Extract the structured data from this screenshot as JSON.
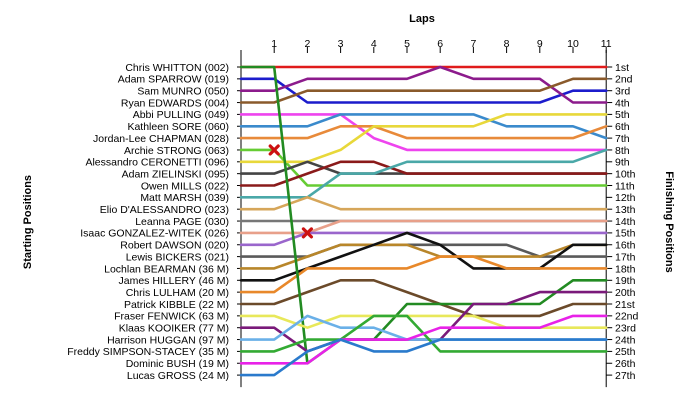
{
  "chart_data": {
    "type": "line",
    "title": "",
    "top_axis_title": "Laps",
    "left_axis_title": "Starting Positions",
    "right_axis_title": "Finishing Positions",
    "laps": [
      1,
      2,
      3,
      4,
      5,
      6,
      7,
      8,
      9,
      10,
      11
    ],
    "starting_labels": [
      "Chris WHITTON (002)",
      "Adam SPARROW (019)",
      "Sam MUNRO (050)",
      "Ryan EDWARDS (004)",
      "Abbi PULLING (049)",
      "Kathleen SORE (060)",
      "Jordan-Lee CHAPMAN (028)",
      "Archie STRONG (063)",
      "Alessandro CERONETTI (096)",
      "Adam ZIELINSKI (095)",
      "Owen MILLS (022)",
      "Matt MARSH (039)",
      "Elio D'ALESSANDRO (023)",
      "Leanna PAGE (030)",
      "Isaac GONZALEZ-WITEK (026)",
      "Robert DAWSON (020)",
      "Lewis BICKERS (021)",
      "Lochlan BEARMAN (36 M)",
      "James HILLERY (46 M)",
      "Chris LULHAM (20 M)",
      "Patrick KIBBLE (22 M)",
      "Fraser FENWICK (63 M)",
      "Klaas KOOIKER (77 M)",
      "Harrison HUGGAN (97 M)",
      "Freddy SIMPSON-STACEY (35 M)",
      "Dominic BUSH (19 M)",
      "Lucas GROSS (24 M)"
    ],
    "finishing_labels": [
      "1st",
      "2nd",
      "3rd",
      "4th",
      "5th",
      "6th",
      "7th",
      "8th",
      "9th",
      "10th",
      "11th",
      "12th",
      "13th",
      "14th",
      "15th",
      "16th",
      "17th",
      "18th",
      "19th",
      "20th",
      "21st",
      "22nd",
      "23rd",
      "24th",
      "25th",
      "26th",
      "27th"
    ],
    "y_range": [
      1,
      27
    ],
    "x_range": [
      0,
      11
    ],
    "grid": true,
    "retirements": [
      {
        "lap": 1,
        "position": 8
      },
      {
        "lap": 2,
        "position": 15
      }
    ],
    "series": [
      {
        "color": "#e01b1b",
        "positions": [
          1,
          1,
          1,
          1,
          1,
          1,
          1,
          1,
          1,
          1,
          1,
          1
        ]
      },
      {
        "color": "#1c1ccc",
        "positions": [
          2,
          2,
          4,
          4,
          4,
          4,
          4,
          4,
          4,
          4,
          3,
          3
        ]
      },
      {
        "color": "#8c1b8c",
        "positions": [
          3,
          3,
          2,
          2,
          2,
          2,
          1,
          2,
          2,
          2,
          4,
          4
        ]
      },
      {
        "color": "#8a5a2b",
        "positions": [
          4,
          4,
          3,
          3,
          3,
          3,
          3,
          3,
          3,
          3,
          2,
          2
        ]
      },
      {
        "color": "#ee44ee",
        "positions": [
          5,
          5,
          5,
          5,
          7,
          8,
          8,
          8,
          8,
          8,
          8,
          8
        ]
      },
      {
        "color": "#3a8acc",
        "positions": [
          6,
          6,
          6,
          5,
          5,
          5,
          5,
          5,
          6,
          6,
          6,
          7
        ]
      },
      {
        "color": "#e88a3a",
        "positions": [
          7,
          7,
          7,
          6,
          6,
          7,
          7,
          7,
          7,
          7,
          7,
          6
        ]
      },
      {
        "color": "#66cc33",
        "positions": [
          8,
          8,
          11,
          11,
          11,
          11,
          11,
          11,
          11,
          11,
          11,
          11
        ]
      },
      {
        "color": "#e8d83a",
        "positions": [
          9,
          9,
          9,
          8,
          6,
          6,
          6,
          6,
          5,
          5,
          5,
          5
        ]
      },
      {
        "color": "#444444",
        "positions": [
          10,
          10,
          9,
          10,
          10,
          10,
          10,
          10,
          10,
          10,
          10,
          10
        ]
      },
      {
        "color": "#8a1a1a",
        "positions": [
          11,
          11,
          10,
          9,
          9,
          10,
          10,
          10,
          10,
          10,
          10,
          10
        ]
      },
      {
        "color": "#4aa8a8",
        "positions": [
          12,
          12,
          12,
          10,
          10,
          9,
          9,
          9,
          9,
          9,
          9,
          8
        ]
      },
      {
        "color": "#d6a65a",
        "positions": [
          13,
          13,
          12,
          13,
          13,
          13,
          13,
          13,
          13,
          13,
          13,
          13
        ]
      },
      {
        "color": "#777777",
        "positions": [
          14,
          14,
          14,
          14,
          14,
          14,
          14,
          14,
          14,
          14,
          14,
          14
        ]
      },
      {
        "color": "#e8a08a",
        "positions": [
          15,
          15,
          15,
          14,
          14,
          14,
          14,
          14,
          14,
          14,
          14,
          14
        ]
      },
      {
        "color": "#9a66cc",
        "positions": [
          16,
          16,
          15,
          15,
          15,
          15,
          15,
          15,
          15,
          15,
          15,
          15
        ]
      },
      {
        "color": "#5a5a5a",
        "positions": [
          17,
          17,
          17,
          16,
          16,
          16,
          16,
          16,
          16,
          17,
          17,
          17
        ]
      },
      {
        "color": "#b8862a",
        "positions": [
          18,
          18,
          17,
          16,
          16,
          16,
          17,
          17,
          17,
          17,
          16,
          16
        ]
      },
      {
        "color": "#111111",
        "positions": [
          19,
          19,
          18,
          17,
          16,
          15,
          16,
          18,
          18,
          18,
          16,
          16
        ]
      },
      {
        "color": "#e8882a",
        "positions": [
          20,
          20,
          18,
          18,
          18,
          18,
          17,
          17,
          18,
          18,
          18,
          18
        ]
      },
      {
        "color": "#6b4a2a",
        "positions": [
          21,
          21,
          20,
          19,
          19,
          20,
          21,
          22,
          22,
          22,
          21,
          21
        ]
      },
      {
        "color": "#228b22",
        "positions": [
          1,
          1,
          26,
          24,
          24,
          21,
          21,
          21,
          21,
          21,
          19,
          19
        ]
      },
      {
        "color": "#e8e85a",
        "positions": [
          22,
          22,
          23,
          22,
          22,
          22,
          22,
          22,
          23,
          23,
          23,
          23
        ]
      },
      {
        "color": "#7a1a7a",
        "positions": [
          23,
          23,
          25,
          24,
          24,
          24,
          24,
          21,
          21,
          20,
          20,
          20
        ]
      },
      {
        "color": "#6ab0e8",
        "positions": [
          24,
          24,
          22,
          23,
          23,
          24,
          24,
          24,
          24,
          24,
          24,
          24
        ]
      },
      {
        "color": "#33aa33",
        "positions": [
          25,
          25,
          24,
          24,
          22,
          22,
          25,
          25,
          25,
          25,
          25,
          25
        ]
      },
      {
        "color": "#e822e8",
        "positions": [
          26,
          26,
          26,
          24,
          24,
          24,
          23,
          23,
          23,
          23,
          22,
          22
        ]
      },
      {
        "color": "#2a7acc",
        "positions": [
          27,
          27,
          25,
          24,
          25,
          25,
          24,
          24,
          24,
          24,
          24,
          24
        ]
      }
    ]
  }
}
